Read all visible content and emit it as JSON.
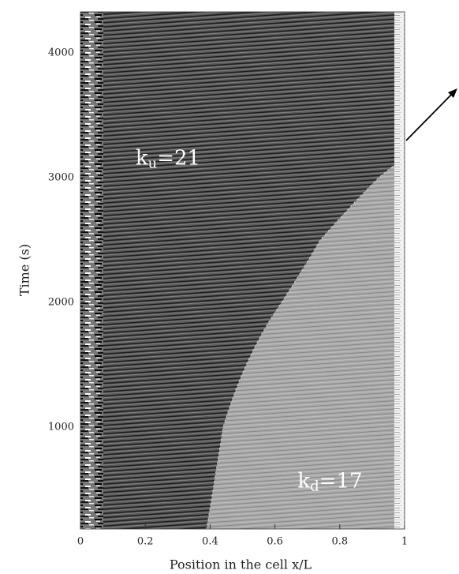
{
  "chart_data": {
    "type": "spacetime",
    "xlabel": "Position in the cell x/L",
    "ylabel": "Time (s)",
    "xlim": [
      0,
      1
    ],
    "xticks": [
      0,
      0.2,
      0.4,
      0.6,
      0.8,
      1
    ],
    "ylim": [
      184,
      4330
    ],
    "yticks": [
      1000,
      2000,
      3000,
      4000
    ],
    "annotations": [
      {
        "base": "k",
        "subscript": "u",
        "suffix": "=21",
        "x": 0.17,
        "y": 3150
      },
      {
        "base": "k",
        "subscript": "d",
        "suffix": "=17",
        "x": 0.67,
        "y": 560
      }
    ]
  }
}
